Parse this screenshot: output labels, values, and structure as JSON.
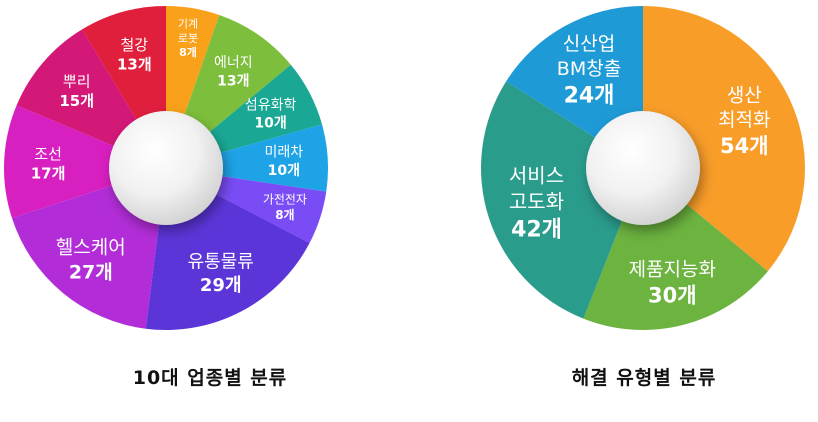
{
  "chart_data": [
    {
      "type": "pie",
      "title": "10대 업종별 분류",
      "unit": "개",
      "categories": [
        "기계로봇",
        "에너지",
        "섬유화학",
        "미래차",
        "가전전자",
        "유통물류",
        "헬스케어",
        "조선",
        "뿌리",
        "철강"
      ],
      "values": [
        8,
        13,
        10,
        10,
        8,
        29,
        27,
        17,
        15,
        13
      ],
      "label_lines": [
        [
          "기계",
          "로봇",
          "8개"
        ],
        [
          "에너지",
          "13개"
        ],
        [
          "섬유화학",
          "10개"
        ],
        [
          "미래차",
          "10개"
        ],
        [
          "가전전자",
          "8개"
        ],
        [
          "유통물류",
          "29개"
        ],
        [
          "헬스케어",
          "27개"
        ],
        [
          "조선",
          "17개"
        ],
        [
          "뿌리",
          "15개"
        ],
        [
          "철강",
          "13개"
        ]
      ],
      "colors": [
        "#F9A11B",
        "#7DBE3C",
        "#1AA894",
        "#1EA3E6",
        "#7A4CF5",
        "#5C35D9",
        "#B22DD8",
        "#D81FBF",
        "#D31878",
        "#E01F3D"
      ]
    },
    {
      "type": "pie",
      "title": "해결 유형별 분류",
      "unit": "개",
      "categories": [
        "생산 최적화",
        "제품지능화",
        "서비스 고도화",
        "신산업 BM창출"
      ],
      "values": [
        54,
        30,
        42,
        24
      ],
      "label_lines": [
        [
          "생산",
          "최적화",
          "54개"
        ],
        [
          "제품지능화",
          "30개"
        ],
        [
          "서비스",
          "고도화",
          "42개"
        ],
        [
          "신산업",
          "BM창출",
          "24개"
        ]
      ],
      "colors": [
        "#F99D29",
        "#6CB33F",
        "#2A9C8C",
        "#1E9AD6"
      ]
    }
  ]
}
